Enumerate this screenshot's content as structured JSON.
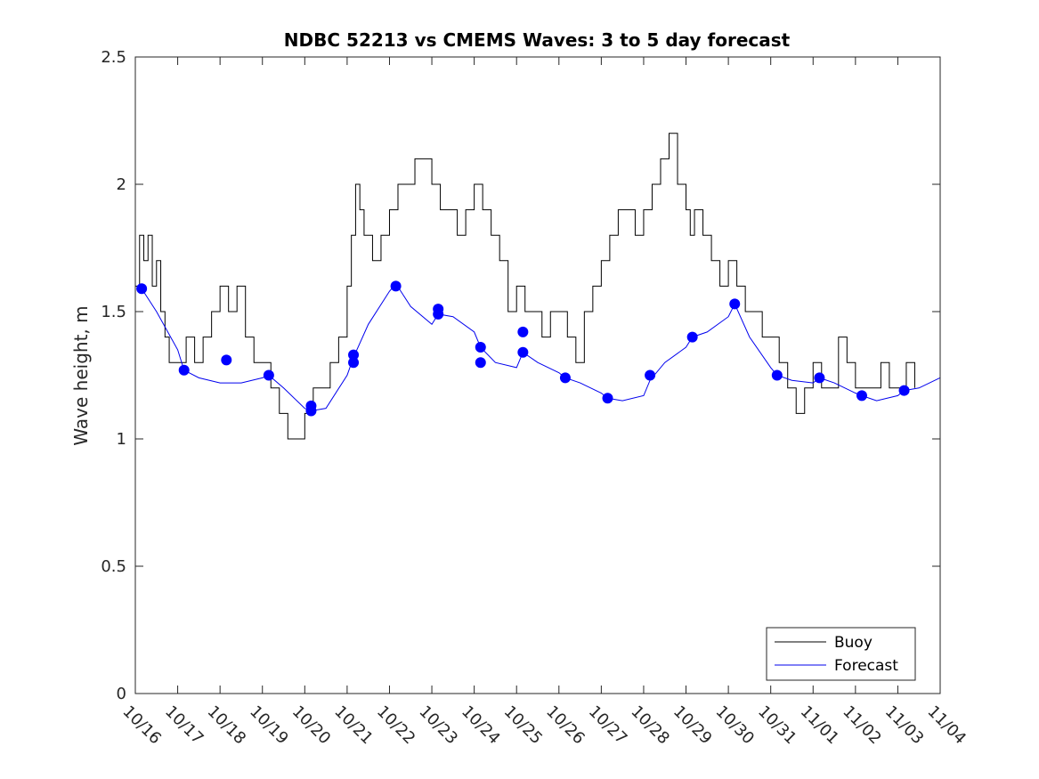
{
  "chart_data": {
    "type": "line",
    "title": "NDBC 52213 vs CMEMS Waves: 3 to 5 day forecast",
    "xlabel": "",
    "ylabel": "Wave height, m",
    "x_start_label": "10/16",
    "xticks": [
      "10/16",
      "10/17",
      "10/18",
      "10/19",
      "10/20",
      "10/21",
      "10/22",
      "10/23",
      "10/24",
      "10/25",
      "10/26",
      "10/27",
      "10/28",
      "10/29",
      "10/30",
      "10/31",
      "11/01",
      "11/02",
      "11/03",
      "11/04"
    ],
    "xlim": [
      0,
      19
    ],
    "ylim": [
      0,
      2.5
    ],
    "yticks": [
      "0",
      "0.5",
      "1",
      "1.5",
      "2",
      "2.5"
    ],
    "legend": {
      "position": "bottom-right",
      "entries": [
        "Buoy",
        "Forecast"
      ]
    },
    "colors": {
      "buoy": "#000000",
      "forecast": "#0000ee",
      "marker": "#0000ff"
    },
    "series": [
      {
        "name": "Buoy",
        "x": [
          0,
          0.1,
          0.2,
          0.3,
          0.4,
          0.5,
          0.6,
          0.7,
          0.8,
          1.0,
          1.2,
          1.4,
          1.6,
          1.8,
          2.0,
          2.2,
          2.4,
          2.6,
          2.8,
          3.0,
          3.2,
          3.4,
          3.6,
          3.8,
          4.0,
          4.2,
          4.4,
          4.6,
          4.8,
          5.0,
          5.1,
          5.2,
          5.3,
          5.4,
          5.6,
          5.8,
          6.0,
          6.2,
          6.4,
          6.6,
          6.8,
          7.0,
          7.2,
          7.4,
          7.6,
          7.8,
          8.0,
          8.2,
          8.4,
          8.6,
          8.8,
          9.0,
          9.2,
          9.4,
          9.6,
          9.8,
          10.0,
          10.2,
          10.4,
          10.6,
          10.8,
          11.0,
          11.2,
          11.4,
          11.6,
          11.8,
          12.0,
          12.2,
          12.4,
          12.6,
          12.8,
          13.0,
          13.1,
          13.2,
          13.4,
          13.6,
          13.8,
          14.0,
          14.2,
          14.4,
          14.6,
          14.8,
          15.0,
          15.2,
          15.4,
          15.6,
          15.8,
          16.0,
          16.2,
          16.4,
          16.6,
          16.8,
          17.0,
          17.2,
          17.4,
          17.6,
          17.8,
          18.0,
          18.2,
          18.4
        ],
        "values": [
          1.6,
          1.8,
          1.7,
          1.8,
          1.6,
          1.7,
          1.5,
          1.4,
          1.3,
          1.3,
          1.4,
          1.3,
          1.4,
          1.5,
          1.6,
          1.5,
          1.6,
          1.4,
          1.3,
          1.3,
          1.2,
          1.1,
          1.0,
          1.0,
          1.1,
          1.2,
          1.2,
          1.3,
          1.4,
          1.6,
          1.8,
          2.0,
          1.9,
          1.8,
          1.7,
          1.8,
          1.9,
          2.0,
          2.0,
          2.1,
          2.1,
          2.0,
          1.9,
          1.9,
          1.8,
          1.9,
          2.0,
          1.9,
          1.8,
          1.7,
          1.5,
          1.6,
          1.5,
          1.5,
          1.4,
          1.5,
          1.5,
          1.4,
          1.3,
          1.5,
          1.6,
          1.7,
          1.8,
          1.9,
          1.9,
          1.8,
          1.9,
          2.0,
          2.1,
          2.2,
          2.0,
          1.9,
          1.8,
          1.9,
          1.8,
          1.7,
          1.6,
          1.7,
          1.6,
          1.5,
          1.5,
          1.4,
          1.4,
          1.3,
          1.2,
          1.1,
          1.2,
          1.3,
          1.2,
          1.2,
          1.4,
          1.3,
          1.2,
          1.2,
          1.2,
          1.3,
          1.2,
          1.2,
          1.3,
          1.2
        ]
      },
      {
        "name": "Forecast",
        "x": [
          0.15,
          0.5,
          1.0,
          1.15,
          1.5,
          2.0,
          2.5,
          3.0,
          3.15,
          3.5,
          4.0,
          4.15,
          4.5,
          5.0,
          5.15,
          5.5,
          6.0,
          6.15,
          6.5,
          7.0,
          7.15,
          7.5,
          8.0,
          8.15,
          8.5,
          9.0,
          9.15,
          9.5,
          10.0,
          10.15,
          10.5,
          11.0,
          11.15,
          11.5,
          12.0,
          12.15,
          12.5,
          13.0,
          13.15,
          13.5,
          14.0,
          14.15,
          14.5,
          15.0,
          15.15,
          15.5,
          16.0,
          16.15,
          16.5,
          17.0,
          17.15,
          17.5,
          18.0,
          18.15,
          18.5,
          19.0
        ],
        "values": [
          1.59,
          1.5,
          1.35,
          1.27,
          1.24,
          1.22,
          1.22,
          1.24,
          1.25,
          1.2,
          1.12,
          1.11,
          1.12,
          1.25,
          1.32,
          1.45,
          1.58,
          1.61,
          1.52,
          1.45,
          1.49,
          1.48,
          1.42,
          1.36,
          1.3,
          1.28,
          1.34,
          1.3,
          1.26,
          1.24,
          1.22,
          1.18,
          1.16,
          1.15,
          1.17,
          1.23,
          1.3,
          1.36,
          1.4,
          1.42,
          1.48,
          1.53,
          1.4,
          1.28,
          1.25,
          1.23,
          1.22,
          1.24,
          1.22,
          1.18,
          1.17,
          1.15,
          1.17,
          1.19,
          1.2,
          1.24
        ]
      }
    ],
    "markers": {
      "name": "Forecast points",
      "x": [
        0.15,
        1.15,
        2.15,
        3.15,
        4.15,
        4.15,
        5.15,
        5.15,
        6.15,
        7.15,
        7.15,
        8.15,
        8.15,
        9.15,
        9.15,
        10.15,
        11.15,
        12.15,
        13.15,
        14.15,
        15.15,
        16.15,
        17.15,
        18.15
      ],
      "values": [
        1.59,
        1.27,
        1.31,
        1.25,
        1.13,
        1.11,
        1.33,
        1.3,
        1.6,
        1.51,
        1.49,
        1.36,
        1.3,
        1.42,
        1.34,
        1.24,
        1.16,
        1.25,
        1.4,
        1.53,
        1.25,
        1.24,
        1.17,
        1.19
      ]
    }
  }
}
